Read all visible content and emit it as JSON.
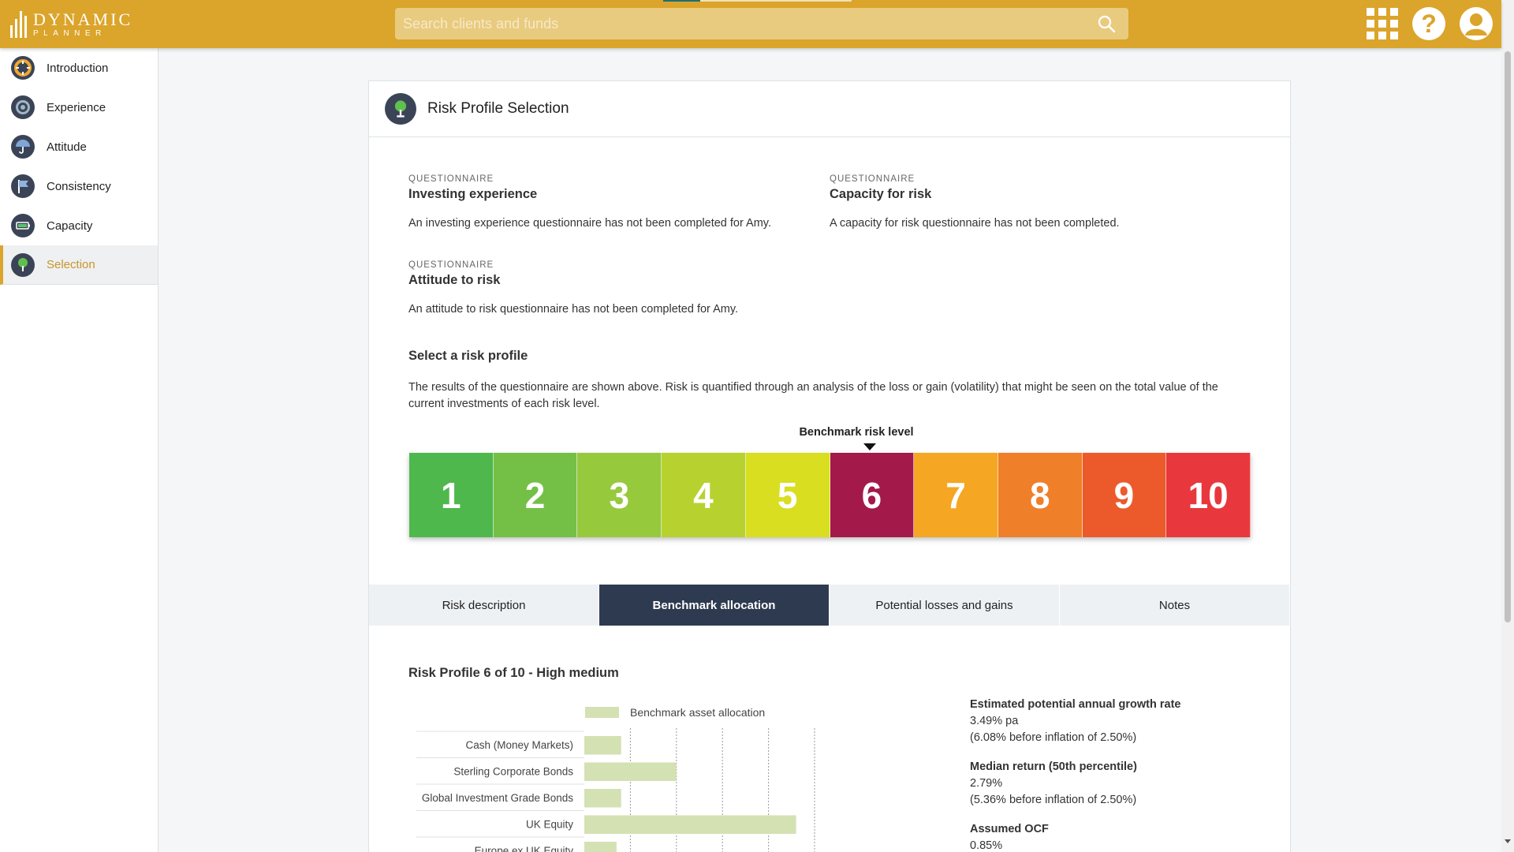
{
  "brand": {
    "line1": "DYNAMIC",
    "line2": "PLANNER"
  },
  "search": {
    "placeholder": "Search clients and funds"
  },
  "header_icons": [
    "apps-grid-icon",
    "help-icon",
    "account-icon"
  ],
  "sidebar": {
    "items": [
      {
        "label": "Introduction",
        "icon": "lifebuoy-icon",
        "active": false
      },
      {
        "label": "Experience",
        "icon": "target-icon",
        "active": false
      },
      {
        "label": "Attitude",
        "icon": "umbrella-icon",
        "active": false
      },
      {
        "label": "Consistency",
        "icon": "flag-icon",
        "active": false
      },
      {
        "label": "Capacity",
        "icon": "battery-icon",
        "active": false
      },
      {
        "label": "Selection",
        "icon": "tree-icon",
        "active": true
      }
    ]
  },
  "card": {
    "title": "Risk Profile Selection",
    "questionnaires": [
      {
        "eyebrow": "QUESTIONNAIRE",
        "title": "Investing experience",
        "text": "An investing experience questionnaire has not been completed for Amy."
      },
      {
        "eyebrow": "QUESTIONNAIRE",
        "title": "Capacity for risk",
        "text": "A capacity for risk questionnaire has not been completed."
      },
      {
        "eyebrow": "QUESTIONNAIRE",
        "title": "Attitude to risk",
        "text": "An attitude to risk questionnaire has not been completed for Amy."
      }
    ],
    "select_title": "Select a risk profile",
    "select_desc": "The results of the questionnaire are shown above. Risk is quantified through an analysis of the loss or gain (volatility) that might be seen on the total value of the current investments of each risk level.",
    "benchmark_label": "Benchmark risk level",
    "risk_levels": [
      {
        "label": "1",
        "color": "#4fb84d"
      },
      {
        "label": "2",
        "color": "#74c046"
      },
      {
        "label": "3",
        "color": "#97c93d"
      },
      {
        "label": "4",
        "color": "#b7d22f"
      },
      {
        "label": "5",
        "color": "#d9de21"
      },
      {
        "label": "6",
        "color": "#a3194a"
      },
      {
        "label": "7",
        "color": "#f5a623"
      },
      {
        "label": "8",
        "color": "#f07f2a"
      },
      {
        "label": "9",
        "color": "#ec5a2c"
      },
      {
        "label": "10",
        "color": "#e8383d"
      }
    ],
    "selected_level": 6,
    "tabs": [
      {
        "label": "Risk description",
        "active": false
      },
      {
        "label": "Benchmark allocation",
        "active": true
      },
      {
        "label": "Potential losses and gains",
        "active": false
      },
      {
        "label": "Notes",
        "active": false
      }
    ],
    "profile_title": "Risk Profile 6 of 10 - High medium",
    "stats": [
      {
        "heading": "Estimated potential annual growth rate",
        "lines": [
          "3.49% pa",
          "(6.08% before inflation of 2.50%)"
        ]
      },
      {
        "heading": "Median return (50th percentile)",
        "lines": [
          "2.79%",
          "(5.36% before inflation of 2.50%)"
        ]
      },
      {
        "heading": "Assumed OCF",
        "lines": [
          "0.85%"
        ]
      }
    ]
  },
  "chart_data": {
    "type": "bar",
    "orientation": "horizontal",
    "categories": [
      "Cash (Money Markets)",
      "Sterling Corporate Bonds",
      "Global Investment Grade Bonds",
      "UK Equity",
      "Europe ex UK Equity"
    ],
    "series": [
      {
        "name": "Benchmark asset allocation",
        "values": [
          4,
          10,
          4,
          23,
          3.5
        ],
        "color": "#d4e1b3"
      }
    ],
    "xlim": [
      0,
      25
    ],
    "grid": true,
    "legend": "top"
  }
}
